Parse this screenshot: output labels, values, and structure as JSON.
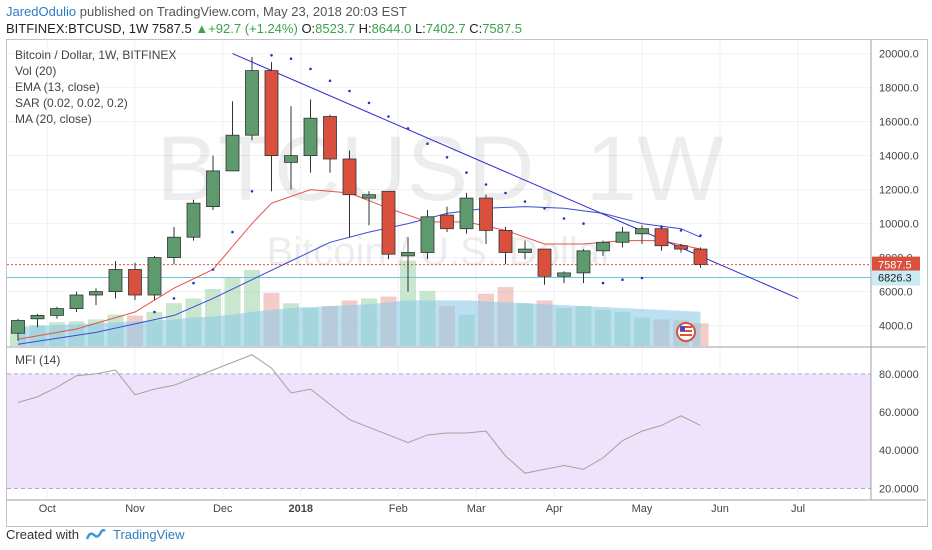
{
  "header": {
    "author": "JaredOdulio",
    "published_text": "published on TradingView.com, May 23, 2018 20:03 EST",
    "symbol": "BITFINEX:BTCUSD, 1W",
    "last": "7587.5",
    "change": "+92.7 (+1.24%)",
    "o_label": "O:",
    "o_value": "8523.7",
    "h_label": "H:",
    "h_value": "8644.0",
    "l_label": "L:",
    "l_value": "7402.7",
    "c_label": "C:",
    "c_value": "7587.5"
  },
  "legend": {
    "title": "Bitcoin / Dollar, 1W, BITFINEX",
    "vol": "Vol (20)",
    "ema": "EMA (13, close)",
    "sar": "SAR (0.02, 0.02, 0.2)",
    "ma": "MA (20, close)",
    "mfi": "MFI (14)"
  },
  "watermark": {
    "symbol": "BTCUSD, 1W",
    "name": "Bitcoin / U.S. Dollar"
  },
  "price_badges": {
    "last": "7587.5",
    "level": "6826.3"
  },
  "footer": {
    "created_with": "Created with",
    "brand": "TradingView"
  },
  "colors": {
    "up": "#5e9a6e",
    "down": "#d9503f",
    "ema": "#e8504a",
    "ma": "#3e4ad6",
    "sar": "#3030c0",
    "trend": "#2a2ad0",
    "volume": "#8fcbe8",
    "mfi_band": "#efe3fb",
    "mfi_line": "#9aa89a"
  },
  "chart_data": {
    "type": "candlestick",
    "price_ylim": [
      2800,
      20800
    ],
    "price_yticks": [
      "20000.0",
      "18000.0",
      "16000.0",
      "14000.0",
      "12000.0",
      "10000.0",
      "8000.0",
      "6000.0",
      "4000.0"
    ],
    "price_ytick_values": [
      20000,
      18000,
      16000,
      14000,
      12000,
      10000,
      8000,
      6000,
      4000
    ],
    "x_labels": [
      "Oct",
      "Nov",
      "Dec",
      "2018",
      "Feb",
      "Mar",
      "Apr",
      "May",
      "Jun",
      "Jul"
    ],
    "x_label_weeks": [
      1.5,
      6,
      10.5,
      14.5,
      19.5,
      23.5,
      27.5,
      32,
      36,
      40
    ],
    "candles": [
      {
        "w": 0,
        "o": 3550,
        "h": 4400,
        "l": 3100,
        "c": 4300
      },
      {
        "w": 1,
        "o": 4400,
        "h": 4700,
        "l": 3900,
        "c": 4600
      },
      {
        "w": 2,
        "o": 4600,
        "h": 5100,
        "l": 4400,
        "c": 5000
      },
      {
        "w": 3,
        "o": 5000,
        "h": 6000,
        "l": 4800,
        "c": 5800
      },
      {
        "w": 4,
        "o": 5800,
        "h": 6200,
        "l": 5200,
        "c": 6000
      },
      {
        "w": 5,
        "o": 6000,
        "h": 7800,
        "l": 5600,
        "c": 7300
      },
      {
        "w": 6,
        "o": 7300,
        "h": 7700,
        "l": 5500,
        "c": 5800
      },
      {
        "w": 7,
        "o": 5800,
        "h": 8100,
        "l": 5500,
        "c": 8000
      },
      {
        "w": 8,
        "o": 8000,
        "h": 9800,
        "l": 7600,
        "c": 9200
      },
      {
        "w": 9,
        "o": 9200,
        "h": 11400,
        "l": 9000,
        "c": 11200
      },
      {
        "w": 10,
        "o": 11000,
        "h": 14000,
        "l": 10800,
        "c": 13100
      },
      {
        "w": 11,
        "o": 13100,
        "h": 17200,
        "l": 13100,
        "c": 15200
      },
      {
        "w": 12,
        "o": 15200,
        "h": 19800,
        "l": 14900,
        "c": 19000
      },
      {
        "w": 13,
        "o": 19000,
        "h": 19500,
        "l": 11900,
        "c": 14000
      },
      {
        "w": 14,
        "o": 13600,
        "h": 16900,
        "l": 12000,
        "c": 14000
      },
      {
        "w": 15,
        "o": 14000,
        "h": 17300,
        "l": 13000,
        "c": 16200
      },
      {
        "w": 16,
        "o": 16300,
        "h": 16400,
        "l": 13000,
        "c": 13800
      },
      {
        "w": 17,
        "o": 13800,
        "h": 14300,
        "l": 9200,
        "c": 11700
      },
      {
        "w": 18,
        "o": 11500,
        "h": 11900,
        "l": 9900,
        "c": 11700
      },
      {
        "w": 19,
        "o": 11900,
        "h": 11900,
        "l": 7900,
        "c": 8200
      },
      {
        "w": 20,
        "o": 8100,
        "h": 9200,
        "l": 6000,
        "c": 8300
      },
      {
        "w": 21,
        "o": 8300,
        "h": 10800,
        "l": 7900,
        "c": 10400
      },
      {
        "w": 22,
        "o": 10500,
        "h": 11000,
        "l": 9500,
        "c": 9700
      },
      {
        "w": 23,
        "o": 9700,
        "h": 11800,
        "l": 9400,
        "c": 11500
      },
      {
        "w": 24,
        "o": 11500,
        "h": 11700,
        "l": 8800,
        "c": 9600
      },
      {
        "w": 25,
        "o": 9600,
        "h": 9800,
        "l": 7600,
        "c": 8300
      },
      {
        "w": 26,
        "o": 8300,
        "h": 9000,
        "l": 7900,
        "c": 8500
      },
      {
        "w": 27,
        "o": 8500,
        "h": 8500,
        "l": 6400,
        "c": 6900
      },
      {
        "w": 28,
        "o": 6900,
        "h": 7200,
        "l": 6500,
        "c": 7100
      },
      {
        "w": 29,
        "o": 7100,
        "h": 8500,
        "l": 6500,
        "c": 8400
      },
      {
        "w": 30,
        "o": 8400,
        "h": 9000,
        "l": 8100,
        "c": 8900
      },
      {
        "w": 31,
        "o": 8900,
        "h": 9800,
        "l": 8600,
        "c": 9500
      },
      {
        "w": 32,
        "o": 9400,
        "h": 9900,
        "l": 8800,
        "c": 9700
      },
      {
        "w": 33,
        "o": 9700,
        "h": 9900,
        "l": 8400,
        "c": 8700
      },
      {
        "w": 34,
        "o": 8700,
        "h": 8800,
        "l": 8300,
        "c": 8500
      },
      {
        "w": 35,
        "o": 8500,
        "h": 8600,
        "l": 7400,
        "c": 7600
      }
    ],
    "ema": [
      [
        0,
        3200
      ],
      [
        3,
        3800
      ],
      [
        6,
        4800
      ],
      [
        8,
        6200
      ],
      [
        10,
        7300
      ],
      [
        12,
        10000
      ],
      [
        13,
        11200
      ],
      [
        15,
        12000
      ],
      [
        17,
        11800
      ],
      [
        19,
        10900
      ],
      [
        21,
        10100
      ],
      [
        23,
        10100
      ],
      [
        25,
        9600
      ],
      [
        27,
        8800
      ],
      [
        29,
        8800
      ],
      [
        31,
        9000
      ],
      [
        33,
        9000
      ],
      [
        35,
        8500
      ]
    ],
    "ma": [
      [
        0,
        2900
      ],
      [
        4,
        3600
      ],
      [
        8,
        4600
      ],
      [
        10,
        5600
      ],
      [
        12,
        6700
      ],
      [
        14,
        7800
      ],
      [
        16,
        8900
      ],
      [
        18,
        9500
      ],
      [
        20,
        10000
      ],
      [
        22,
        10600
      ],
      [
        24,
        10900
      ],
      [
        26,
        11000
      ],
      [
        28,
        10900
      ],
      [
        30,
        10600
      ],
      [
        32,
        10000
      ],
      [
        34,
        9700
      ],
      [
        35,
        9200
      ]
    ],
    "sar": [
      [
        7,
        4800
      ],
      [
        8,
        5600
      ],
      [
        9,
        6500
      ],
      [
        10,
        7300
      ],
      [
        11,
        9500
      ],
      [
        12,
        11900
      ],
      [
        13,
        19900
      ],
      [
        14,
        19700
      ],
      [
        15,
        19100
      ],
      [
        16,
        18400
      ],
      [
        17,
        17800
      ],
      [
        18,
        17100
      ],
      [
        19,
        16300
      ],
      [
        20,
        15600
      ],
      [
        21,
        14700
      ],
      [
        22,
        13900
      ],
      [
        23,
        13000
      ],
      [
        24,
        12300
      ],
      [
        25,
        11800
      ],
      [
        26,
        11300
      ],
      [
        27,
        10900
      ],
      [
        28,
        10300
      ],
      [
        29,
        10000
      ],
      [
        30,
        6500
      ],
      [
        31,
        6700
      ],
      [
        32,
        6800
      ],
      [
        33,
        9800
      ],
      [
        34,
        9600
      ],
      [
        35,
        9300
      ]
    ],
    "trendline": [
      [
        11,
        20000
      ],
      [
        40,
        5600
      ]
    ],
    "level_line": 6826.3,
    "last_line": 7587.5,
    "volume_rel": [
      0.2,
      0.22,
      0.25,
      0.26,
      0.28,
      0.33,
      0.32,
      0.36,
      0.45,
      0.5,
      0.6,
      0.72,
      0.8,
      0.56,
      0.45,
      0.4,
      0.42,
      0.48,
      0.5,
      0.52,
      0.9,
      0.58,
      0.42,
      0.33,
      0.55,
      0.62,
      0.45,
      0.48,
      0.4,
      0.42,
      0.38,
      0.36,
      0.3,
      0.28,
      0.27,
      0.24
    ],
    "volume_ma_rel": [
      0.2,
      0.21,
      0.22,
      0.23,
      0.24,
      0.25,
      0.26,
      0.27,
      0.28,
      0.3,
      0.31,
      0.33,
      0.36,
      0.38,
      0.4,
      0.41,
      0.42,
      0.43,
      0.44,
      0.46,
      0.48,
      0.48,
      0.48,
      0.48,
      0.47,
      0.46,
      0.45,
      0.44,
      0.43,
      0.42,
      0.41,
      0.4,
      0.39,
      0.38,
      0.37,
      0.36
    ],
    "mfi_ylim": [
      15,
      93
    ],
    "mfi_yticks": [
      "80.0000",
      "60.0000",
      "40.0000",
      "20.0000"
    ],
    "mfi_ytick_values": [
      80,
      60,
      40,
      20
    ],
    "mfi_band": [
      20,
      80
    ],
    "mfi": [
      [
        0,
        65
      ],
      [
        1,
        68
      ],
      [
        2,
        73
      ],
      [
        3,
        79
      ],
      [
        4,
        80
      ],
      [
        5,
        82
      ],
      [
        6,
        69
      ],
      [
        7,
        72
      ],
      [
        8,
        74
      ],
      [
        9,
        78
      ],
      [
        10,
        82
      ],
      [
        11,
        86
      ],
      [
        12,
        90
      ],
      [
        13,
        83
      ],
      [
        14,
        70
      ],
      [
        15,
        72
      ],
      [
        16,
        64
      ],
      [
        17,
        56
      ],
      [
        18,
        52
      ],
      [
        19,
        48
      ],
      [
        20,
        44
      ],
      [
        21,
        48
      ],
      [
        22,
        49
      ],
      [
        23,
        49
      ],
      [
        24,
        50
      ],
      [
        25,
        37
      ],
      [
        26,
        28
      ],
      [
        27,
        30
      ],
      [
        28,
        32
      ],
      [
        29,
        30
      ],
      [
        30,
        36
      ],
      [
        31,
        45
      ],
      [
        32,
        50
      ],
      [
        33,
        53
      ],
      [
        34,
        58
      ],
      [
        35,
        53
      ]
    ]
  }
}
